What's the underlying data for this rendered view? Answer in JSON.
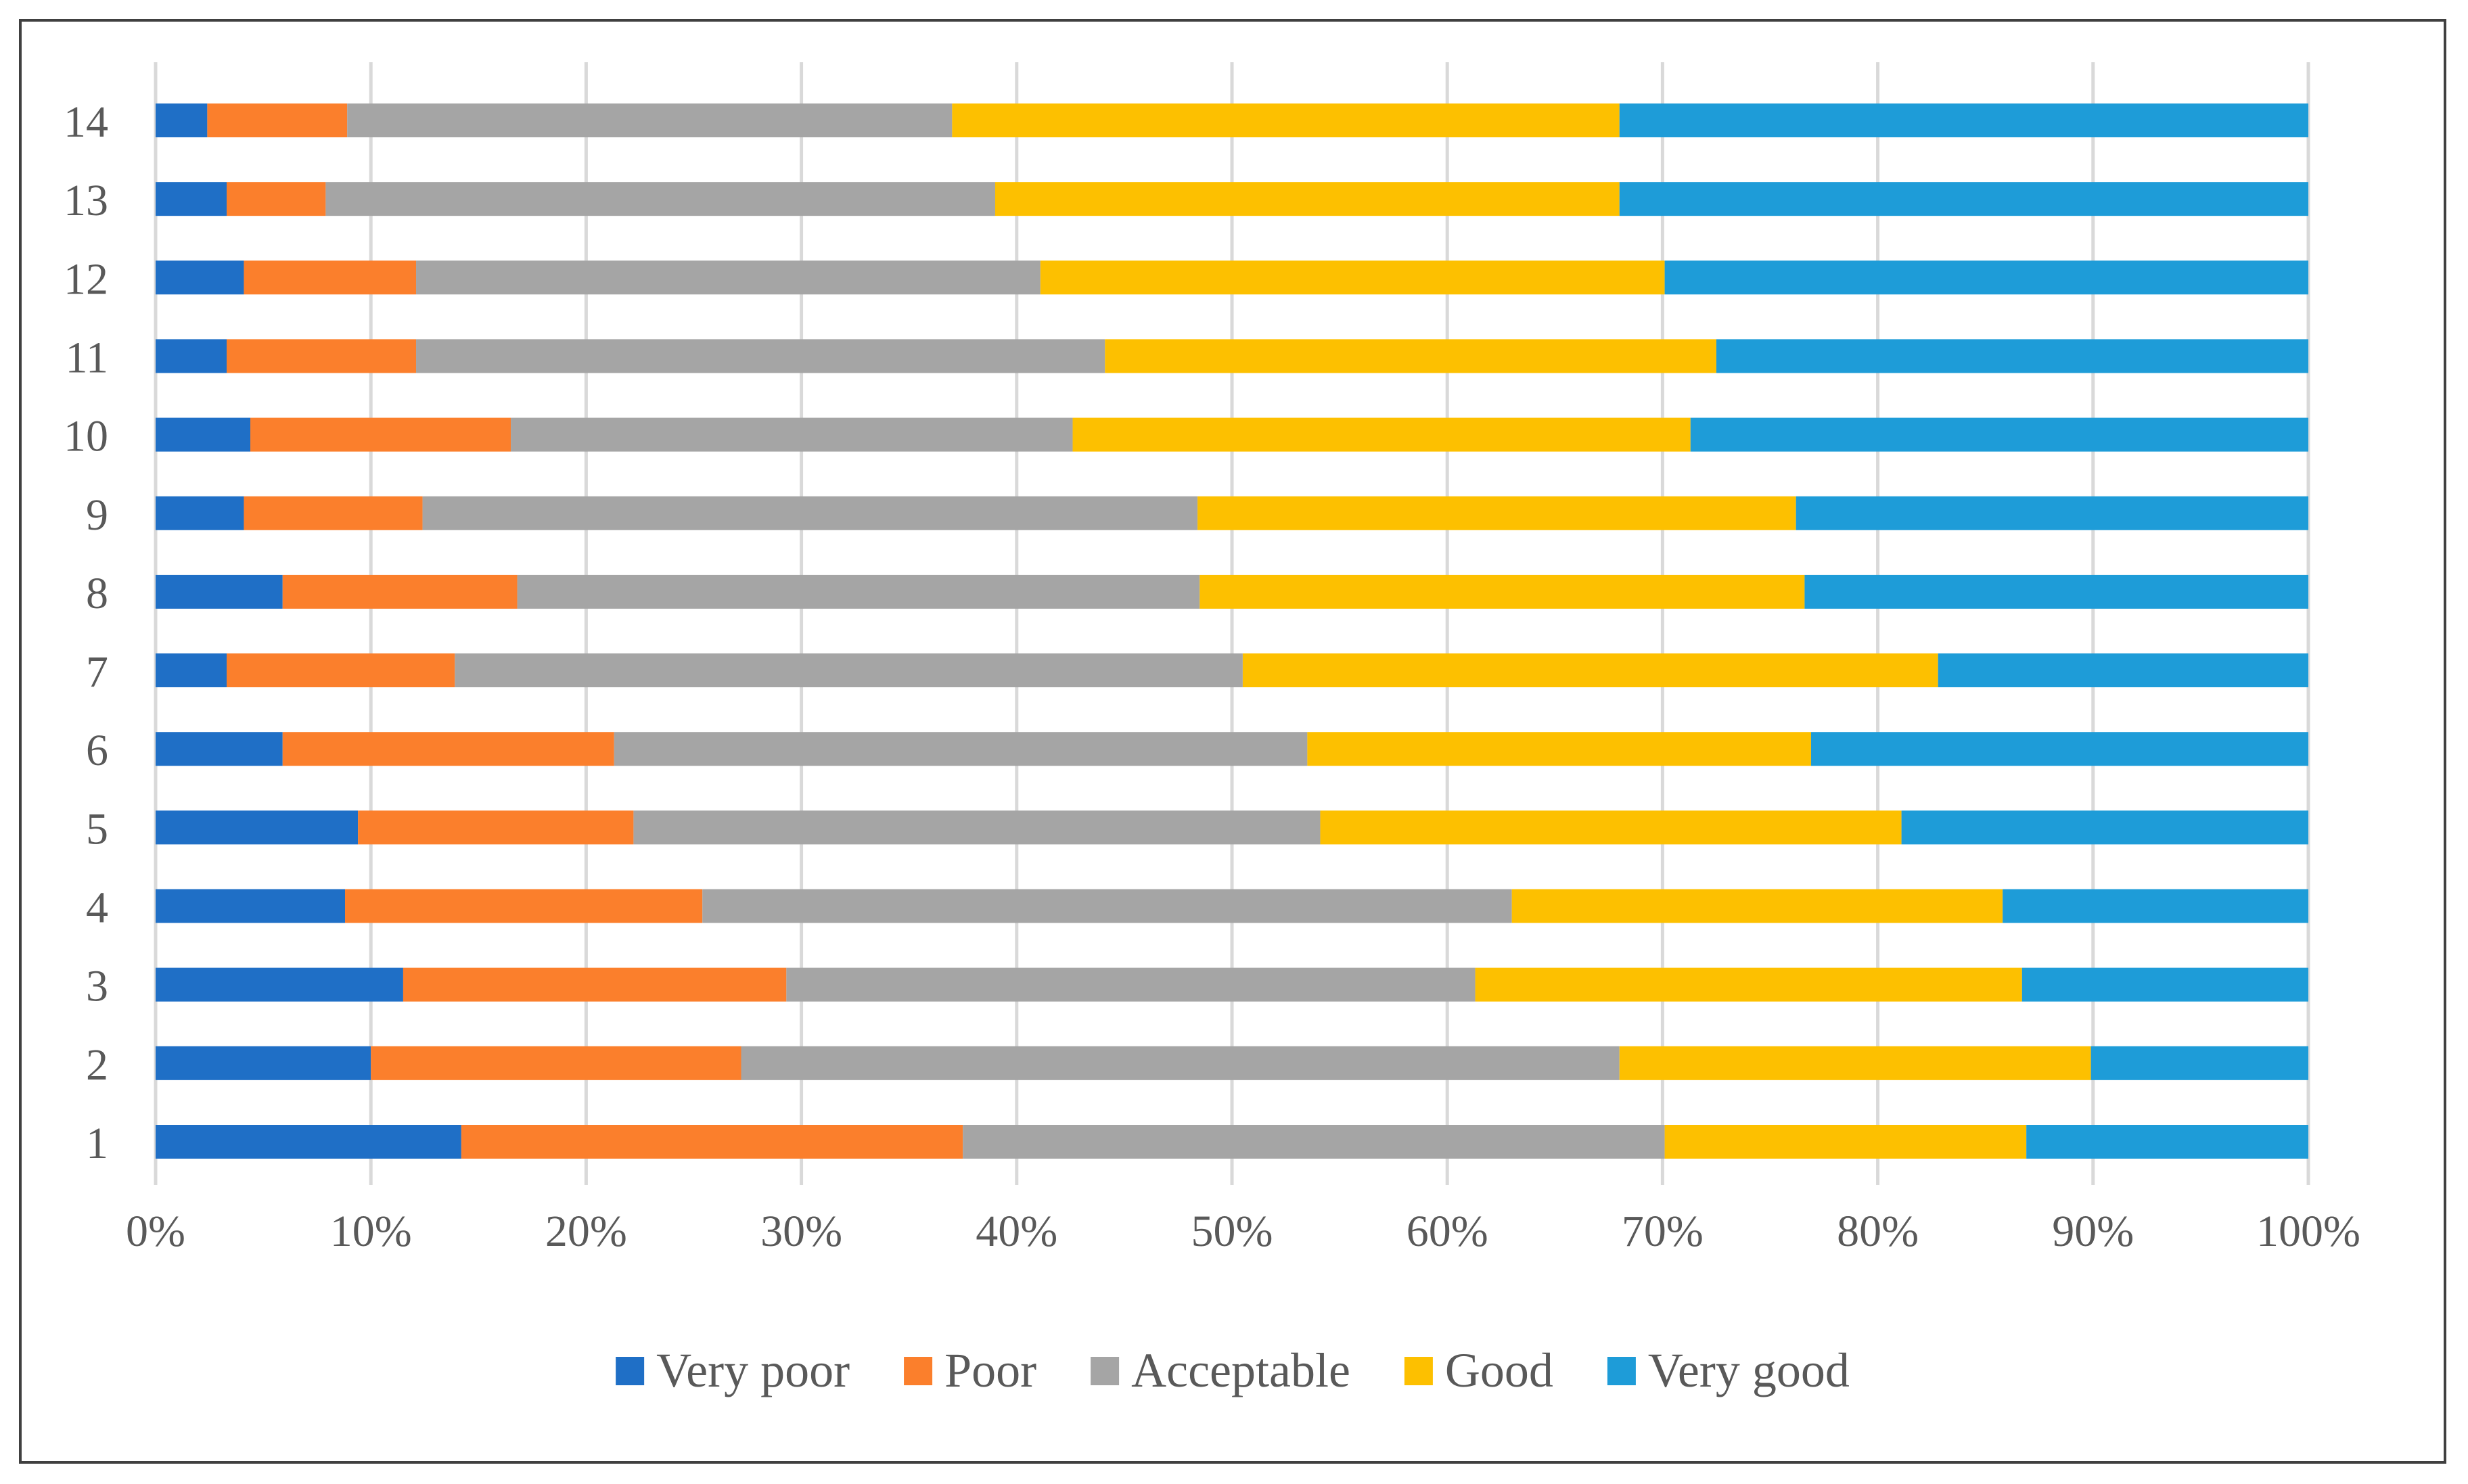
{
  "chart_data": {
    "type": "bar",
    "orientation": "horizontal",
    "stacked": "percent",
    "title": "",
    "xlabel": "",
    "ylabel": "",
    "xlim": [
      0,
      100
    ],
    "x_ticks": [
      "0%",
      "10%",
      "20%",
      "30%",
      "40%",
      "50%",
      "60%",
      "70%",
      "80%",
      "90%",
      "100%"
    ],
    "grid": "vertical",
    "legend_position": "bottom",
    "categories": [
      "1",
      "2",
      "3",
      "4",
      "5",
      "6",
      "7",
      "8",
      "9",
      "10",
      "11",
      "12",
      "13",
      "14"
    ],
    "series": [
      {
        "name": "Very poor",
        "color": "#1F6FC6",
        "values": [
          14.2,
          10.0,
          11.5,
          8.8,
          9.4,
          5.9,
          3.3,
          5.9,
          4.1,
          4.4,
          3.3,
          4.1,
          3.3,
          2.4
        ]
      },
      {
        "name": "Poor",
        "color": "#FB7F2C",
        "values": [
          23.3,
          17.2,
          17.8,
          16.6,
          12.8,
          15.4,
          10.6,
          10.9,
          8.3,
          12.1,
          8.8,
          8.0,
          4.6,
          6.5
        ]
      },
      {
        "name": "Acceptable",
        "color": "#A5A5A5",
        "values": [
          32.6,
          40.8,
          32.0,
          37.6,
          31.9,
          32.2,
          36.6,
          31.7,
          36.0,
          26.1,
          32.0,
          29.0,
          31.1,
          28.1
        ]
      },
      {
        "name": "Good",
        "color": "#FDC000",
        "values": [
          16.8,
          21.9,
          25.4,
          22.8,
          27.0,
          23.4,
          32.3,
          28.1,
          27.8,
          28.7,
          28.4,
          29.0,
          29.0,
          31.0
        ]
      },
      {
        "name": "Very good",
        "color": "#1E9CD8",
        "values": [
          13.1,
          10.1,
          13.3,
          14.2,
          18.9,
          23.1,
          17.2,
          23.4,
          23.8,
          28.7,
          27.5,
          29.9,
          32.0,
          32.0
        ]
      }
    ]
  },
  "colors": {
    "gridline": "#D9D9D9",
    "tick_text": "#595959",
    "frame": "#404040"
  }
}
